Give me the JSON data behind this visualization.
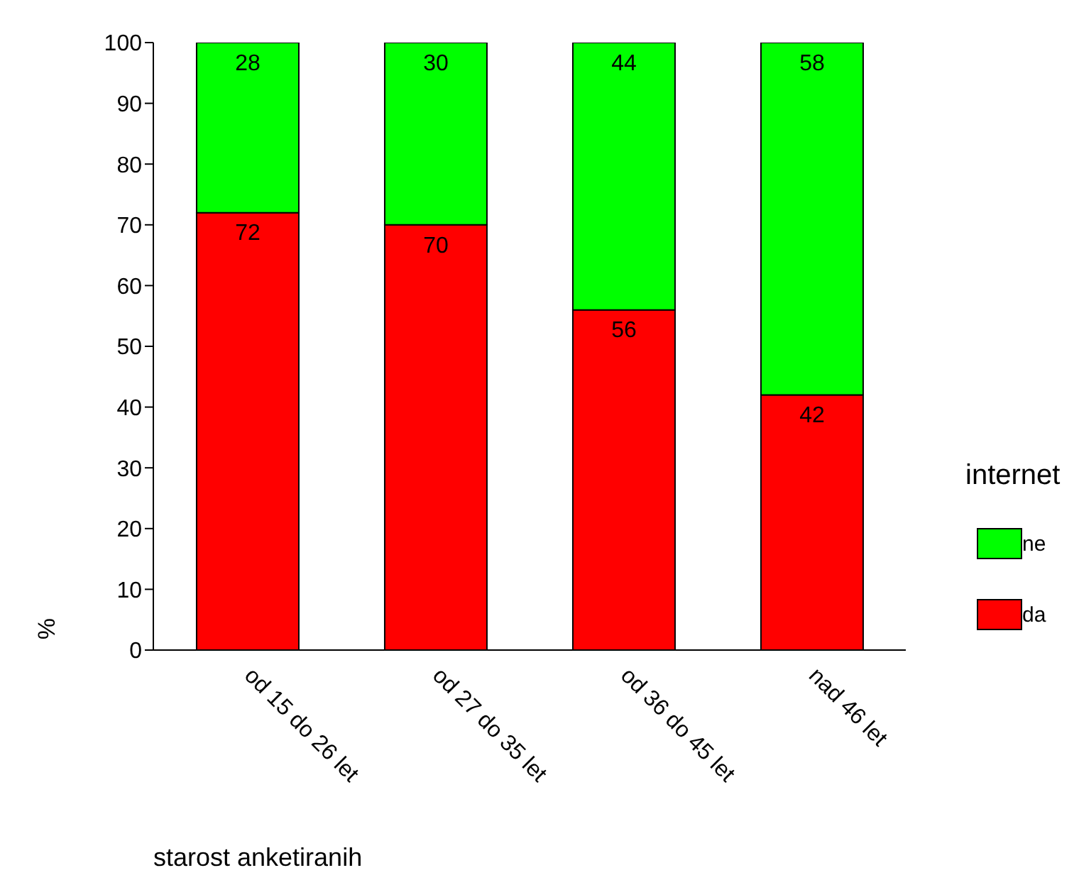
{
  "chart_data": {
    "type": "bar",
    "stacked": true,
    "xlabel": "starost anketiranih",
    "ylabel": "%",
    "legend_title": "internet",
    "legend": "right",
    "data_labels": true,
    "grid": false,
    "categories": [
      "od 15 do 26 let",
      "od 27 do 35 let",
      "od 36 do 45 let",
      "nad 46 let"
    ],
    "ylim": [
      0,
      100
    ],
    "yticks": [
      0,
      10,
      20,
      30,
      40,
      50,
      60,
      70,
      80,
      90,
      100
    ],
    "series": [
      {
        "name": "da",
        "color": "#ff0000",
        "values": [
          72,
          70,
          56,
          42
        ]
      },
      {
        "name": "ne",
        "color": "#00ff00",
        "values": [
          28,
          30,
          44,
          58
        ]
      }
    ]
  }
}
